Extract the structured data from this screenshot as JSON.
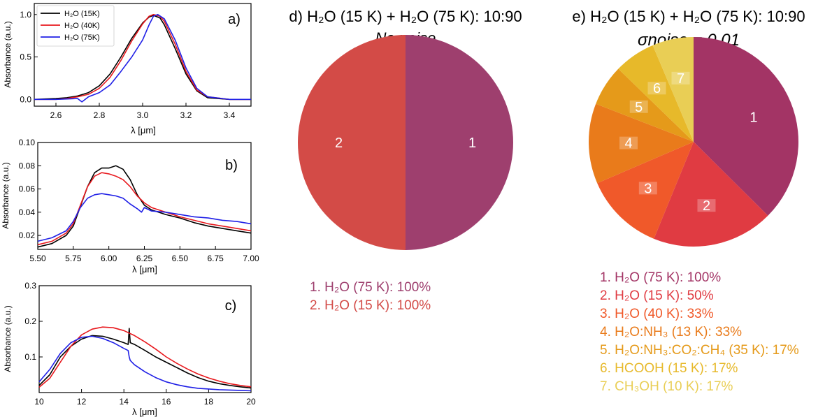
{
  "line_panels": {
    "a": {
      "label": "a)",
      "xlabel": "λ [μm]",
      "ylabel": "Absorbance (a.u.)",
      "xticks": [
        "2.6",
        "2.8",
        "3.0",
        "3.2",
        "3.4"
      ],
      "yticks": [
        "0.0",
        "0.5",
        "1.0"
      ]
    },
    "b": {
      "label": "b)",
      "xlabel": "λ [μm]",
      "ylabel": "Absorbance (a.u.)",
      "xticks": [
        "5.50",
        "5.75",
        "6.00",
        "6.25",
        "6.50",
        "6.75",
        "7.00"
      ],
      "yticks": [
        "0.02",
        "0.04",
        "0.06",
        "0.08",
        "0.10"
      ]
    },
    "c": {
      "label": "c)",
      "xlabel": "λ [μm]",
      "ylabel": "Absorbance (a.u.)",
      "xticks": [
        "10",
        "12",
        "14",
        "16",
        "18",
        "20"
      ],
      "yticks": [
        "0.1",
        "0.2",
        "0.3"
      ]
    }
  },
  "legend": {
    "items": [
      {
        "label": "H₂O (15K)",
        "color": "#000000"
      },
      {
        "label": "H₂O (40K)",
        "color": "#e8191e"
      },
      {
        "label": "H₂O (75K)",
        "color": "#1f1fe6"
      }
    ]
  },
  "pie_d": {
    "title": "d) H₂O (15 K) + H₂O (75 K): 10:90",
    "subtitle": "No noise",
    "legend": [
      {
        "text": "1. H₂O (75 K): 100%",
        "color": "#9e3f6e"
      },
      {
        "text": "2. H₂O (15 K): 100%",
        "color": "#d34b47"
      }
    ]
  },
  "pie_e": {
    "title": "e) H₂O (15 K) + H₂O (75 K): 10:90",
    "subtitle": "σnoise = 0.01",
    "legend": [
      {
        "text": "1. H₂O (75 K): 100%",
        "color": "#a33465"
      },
      {
        "text": "2. H₂O (15 K): 50%",
        "color": "#e03b42"
      },
      {
        "text": "3. H₂O (40 K): 33%",
        "color": "#f0592a"
      },
      {
        "text": "4. H₂O:NH₃ (13 K): 33%",
        "color": "#e97b1b"
      },
      {
        "text": "5. H₂O:NH₃:CO₂:CH₄ (35 K): 17%",
        "color": "#e59a1a"
      },
      {
        "text": "6. HCOOH (15 K): 17%",
        "color": "#e7b92a"
      },
      {
        "text": "7. CH₃OH (10 K): 17%",
        "color": "#e9ce55"
      }
    ]
  },
  "chart_data": [
    {
      "type": "line",
      "id": "a",
      "xlabel": "λ [μm]",
      "ylabel": "Absorbance (a.u.)",
      "xlim": [
        2.5,
        3.5
      ],
      "ylim": [
        -0.08,
        1.13
      ],
      "series": [
        {
          "name": "H₂O (15K)",
          "color": "#000000",
          "x": [
            2.5,
            2.6,
            2.65,
            2.7,
            2.75,
            2.8,
            2.85,
            2.9,
            2.95,
            3.0,
            3.03,
            3.05,
            3.08,
            3.1,
            3.15,
            3.2,
            3.25,
            3.3,
            3.4,
            3.5
          ],
          "y": [
            0.0,
            0.01,
            0.02,
            0.04,
            0.08,
            0.16,
            0.3,
            0.5,
            0.72,
            0.9,
            0.97,
            0.99,
            0.96,
            0.88,
            0.6,
            0.3,
            0.1,
            0.02,
            0.0,
            0.0
          ]
        },
        {
          "name": "H₂O (40K)",
          "color": "#e8191e",
          "x": [
            2.5,
            2.6,
            2.65,
            2.7,
            2.75,
            2.8,
            2.85,
            2.9,
            2.95,
            3.0,
            3.03,
            3.05,
            3.08,
            3.1,
            3.15,
            3.2,
            3.25,
            3.3,
            3.4,
            3.5
          ],
          "y": [
            0.0,
            0.0,
            0.01,
            0.03,
            0.06,
            0.13,
            0.26,
            0.46,
            0.69,
            0.89,
            0.98,
            1.0,
            0.98,
            0.92,
            0.65,
            0.33,
            0.11,
            0.03,
            0.0,
            0.0
          ]
        },
        {
          "name": "H₂O (75K)",
          "color": "#1f1fe6",
          "x": [
            2.5,
            2.6,
            2.7,
            2.72,
            2.75,
            2.8,
            2.85,
            2.9,
            2.95,
            3.0,
            3.03,
            3.05,
            3.07,
            3.1,
            3.15,
            3.2,
            3.25,
            3.3,
            3.4,
            3.5
          ],
          "y": [
            0.0,
            0.0,
            0.01,
            -0.03,
            0.03,
            0.08,
            0.17,
            0.33,
            0.5,
            0.7,
            0.88,
            0.98,
            1.0,
            0.95,
            0.7,
            0.37,
            0.13,
            0.03,
            0.0,
            0.0
          ]
        }
      ]
    },
    {
      "type": "line",
      "id": "b",
      "xlabel": "λ [μm]",
      "ylabel": "Absorbance (a.u.)",
      "xlim": [
        5.5,
        7.0
      ],
      "ylim": [
        0.008,
        0.1
      ],
      "series": [
        {
          "name": "H₂O (15K)",
          "color": "#000000",
          "x": [
            5.5,
            5.6,
            5.7,
            5.75,
            5.8,
            5.85,
            5.9,
            5.95,
            6.0,
            6.05,
            6.1,
            6.15,
            6.2,
            6.25,
            6.3,
            6.4,
            6.5,
            6.6,
            6.7,
            6.8,
            6.9,
            7.0
          ],
          "y": [
            0.01,
            0.013,
            0.02,
            0.028,
            0.045,
            0.062,
            0.074,
            0.078,
            0.078,
            0.08,
            0.077,
            0.068,
            0.055,
            0.046,
            0.042,
            0.038,
            0.035,
            0.031,
            0.028,
            0.026,
            0.024,
            0.022
          ]
        },
        {
          "name": "H₂O (40K)",
          "color": "#e8191e",
          "x": [
            5.5,
            5.6,
            5.7,
            5.75,
            5.8,
            5.85,
            5.9,
            5.95,
            6.0,
            6.05,
            6.1,
            6.15,
            6.2,
            6.25,
            6.3,
            6.4,
            6.5,
            6.6,
            6.7,
            6.8,
            6.9,
            7.0
          ],
          "y": [
            0.012,
            0.015,
            0.022,
            0.03,
            0.046,
            0.062,
            0.071,
            0.074,
            0.073,
            0.071,
            0.068,
            0.062,
            0.054,
            0.048,
            0.044,
            0.04,
            0.036,
            0.033,
            0.03,
            0.028,
            0.026,
            0.024
          ]
        },
        {
          "name": "H₂O (75K)",
          "color": "#1f1fe6",
          "x": [
            5.5,
            5.6,
            5.7,
            5.75,
            5.8,
            5.85,
            5.9,
            5.95,
            6.0,
            6.05,
            6.1,
            6.15,
            6.2,
            6.23,
            6.25,
            6.3,
            6.4,
            6.5,
            6.6,
            6.7,
            6.8,
            6.9,
            7.0
          ],
          "y": [
            0.015,
            0.018,
            0.024,
            0.032,
            0.044,
            0.052,
            0.055,
            0.056,
            0.055,
            0.054,
            0.052,
            0.047,
            0.043,
            0.04,
            0.044,
            0.041,
            0.04,
            0.038,
            0.036,
            0.035,
            0.033,
            0.032,
            0.03
          ]
        }
      ]
    },
    {
      "type": "line",
      "id": "c",
      "xlabel": "λ [μm]",
      "ylabel": "Absorbance (a.u.)",
      "xlim": [
        10,
        20
      ],
      "ylim": [
        0.0,
        0.3
      ],
      "series": [
        {
          "name": "H₂O (15K)",
          "color": "#000000",
          "x": [
            10,
            10.5,
            11,
            11.5,
            12,
            12.5,
            13,
            13.5,
            14,
            14.2,
            14.25,
            14.3,
            14.5,
            15,
            15.5,
            16,
            16.5,
            17,
            17.5,
            18,
            18.5,
            19,
            19.5,
            20
          ],
          "y": [
            0.02,
            0.05,
            0.1,
            0.13,
            0.15,
            0.16,
            0.158,
            0.15,
            0.14,
            0.135,
            0.18,
            0.14,
            0.135,
            0.118,
            0.1,
            0.085,
            0.07,
            0.055,
            0.042,
            0.032,
            0.025,
            0.02,
            0.016,
            0.013
          ]
        },
        {
          "name": "H₂O (40K)",
          "color": "#e8191e",
          "x": [
            10,
            10.5,
            11,
            11.5,
            12,
            12.5,
            13,
            13.5,
            14,
            14.5,
            15,
            15.5,
            16,
            16.5,
            17,
            17.5,
            18,
            18.5,
            19,
            19.5,
            20
          ],
          "y": [
            0.015,
            0.04,
            0.085,
            0.13,
            0.162,
            0.178,
            0.184,
            0.182,
            0.174,
            0.16,
            0.142,
            0.122,
            0.1,
            0.082,
            0.066,
            0.052,
            0.041,
            0.032,
            0.025,
            0.02,
            0.016
          ]
        },
        {
          "name": "H₂O (75K)",
          "color": "#1f1fe6",
          "x": [
            10,
            10.5,
            11,
            11.5,
            12,
            12.5,
            13,
            13.5,
            14,
            14.2,
            14.25,
            14.3,
            14.5,
            15,
            15.5,
            16,
            16.5,
            17,
            17.5,
            18,
            18.5,
            19,
            19.5,
            20
          ],
          "y": [
            0.03,
            0.065,
            0.11,
            0.14,
            0.155,
            0.158,
            0.152,
            0.14,
            0.124,
            0.118,
            0.1,
            0.09,
            0.078,
            0.058,
            0.042,
            0.03,
            0.022,
            0.016,
            0.012,
            0.01,
            0.008,
            0.007,
            0.006,
            0.005
          ]
        }
      ]
    },
    {
      "type": "pie",
      "id": "d",
      "title": "d) H₂O (15 K) + H₂O (75 K): 10:90",
      "subtitle": "No noise",
      "labels": [
        "1",
        "2"
      ],
      "values": [
        50,
        50
      ],
      "colors": [
        "#9e3f6e",
        "#d34b47"
      ]
    },
    {
      "type": "pie",
      "id": "e",
      "title": "e) H₂O (15 K) + H₂O (75 K): 10:90",
      "subtitle": "σnoise = 0.01",
      "labels": [
        "1",
        "2",
        "3",
        "4",
        "5",
        "6",
        "7"
      ],
      "values": [
        100,
        50,
        33,
        33,
        17,
        17,
        17
      ],
      "colors": [
        "#a33465",
        "#e03b42",
        "#f0592a",
        "#e97b1b",
        "#e59a1a",
        "#e7b92a",
        "#e9ce55"
      ]
    }
  ]
}
